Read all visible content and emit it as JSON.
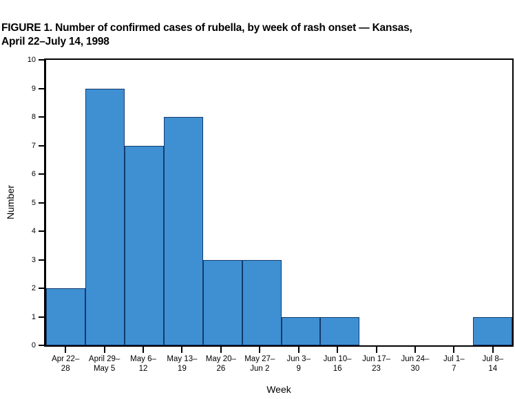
{
  "title": {
    "line1": "FIGURE 1. Number of confirmed cases of rubella, by week of rash onset — Kansas,",
    "line2": "April 22–July 14, 1998"
  },
  "chart_data": {
    "type": "bar",
    "title": "FIGURE 1. Number of confirmed cases of rubella, by week of rash onset — Kansas, April 22–July 14, 1998",
    "categories": [
      "Apr 22–28",
      "April 29–May 5",
      "May 6–12",
      "May 13–19",
      "May 20–26",
      "May 27–Jun 2",
      "Jun 3–9",
      "Jun 10–16",
      "Jun 17–23",
      "Jun 24–30",
      "Jul 1–7",
      "Jul 8–14"
    ],
    "values": [
      2,
      9,
      7,
      8,
      3,
      3,
      1,
      1,
      0,
      0,
      0,
      1
    ],
    "xlabel": "Week",
    "ylabel": "Number",
    "ylim": [
      0,
      10
    ],
    "yticks": [
      0,
      1,
      2,
      3,
      4,
      5,
      6,
      7,
      8,
      9,
      10
    ],
    "grid": false,
    "legend": "none",
    "bar_style": "adjacent-histogram",
    "colors": {
      "bar_fill": "#3F90D2",
      "bar_border": "#123A6E",
      "axis": "#000000",
      "text": "#000000",
      "background": "#FFFFFF"
    }
  }
}
